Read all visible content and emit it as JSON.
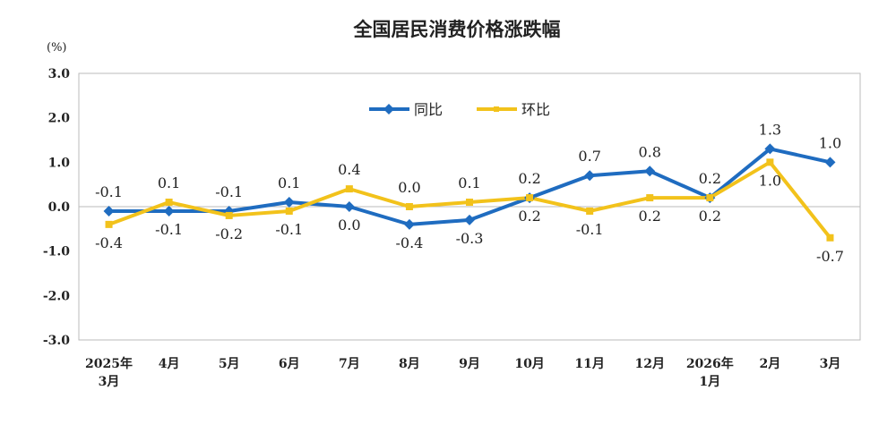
{
  "chart_data": {
    "type": "line",
    "title": "全国居民消费价格涨跌幅",
    "ylabel": "(%)",
    "ylim": [
      -3.0,
      3.0
    ],
    "yticks": [
      "3.0",
      "2.0",
      "1.0",
      "0.0",
      "-1.0",
      "-2.0",
      "-3.0"
    ],
    "categories": [
      [
        "2025年",
        "3月"
      ],
      [
        "4月"
      ],
      [
        "5月"
      ],
      [
        "6月"
      ],
      [
        "7月"
      ],
      [
        "8月"
      ],
      [
        "9月"
      ],
      [
        "10月"
      ],
      [
        "11月"
      ],
      [
        "12月"
      ],
      [
        "2026年",
        "1月"
      ],
      [
        "2月"
      ],
      [
        "3月"
      ]
    ],
    "legend_position": "top-center",
    "grid": false,
    "series": [
      {
        "name": "同比",
        "color": "#1f6cc0",
        "marker": "diamond",
        "values": [
          -0.1,
          -0.1,
          -0.1,
          0.1,
          0.0,
          -0.4,
          -0.3,
          0.2,
          0.7,
          0.8,
          0.2,
          1.3,
          1.0
        ]
      },
      {
        "name": "环比",
        "color": "#f2c21b",
        "marker": "square",
        "values": [
          -0.4,
          0.1,
          -0.2,
          -0.1,
          0.4,
          0.0,
          0.1,
          0.2,
          -0.1,
          0.2,
          0.2,
          1.0,
          -0.7
        ]
      }
    ]
  }
}
